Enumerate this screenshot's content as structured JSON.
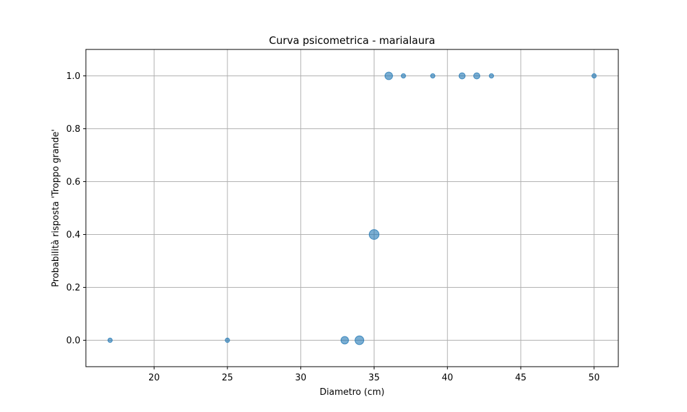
{
  "chart_data": {
    "type": "scatter",
    "title": "Curva psicometrica - marialaura",
    "xlabel": "Diametro (cm)",
    "ylabel": "Probabilità risposta 'Troppo grande'",
    "xlim": [
      15.35,
      51.65
    ],
    "ylim": [
      -0.1,
      1.1
    ],
    "xticks": [
      20,
      25,
      30,
      35,
      40,
      45,
      50
    ],
    "xtick_labels": [
      "20",
      "25",
      "30",
      "35",
      "40",
      "45",
      "50"
    ],
    "yticks": [
      0.0,
      0.2,
      0.4,
      0.6,
      0.8,
      1.0
    ],
    "ytick_labels": [
      "0.0",
      "0.2",
      "0.4",
      "0.6",
      "0.8",
      "1.0"
    ],
    "grid": true,
    "marker_color": "#1f77b4",
    "marker_alpha": 0.6,
    "grid_color": "#b0b0b0",
    "points": [
      {
        "x": 17,
        "y": 0.0,
        "trials": 1
      },
      {
        "x": 25,
        "y": 0.0,
        "trials": 1
      },
      {
        "x": 33,
        "y": 0.0,
        "trials": 3
      },
      {
        "x": 34,
        "y": 0.0,
        "trials": 4
      },
      {
        "x": 35,
        "y": 0.4,
        "trials": 5
      },
      {
        "x": 36,
        "y": 1.0,
        "trials": 3
      },
      {
        "x": 37,
        "y": 1.0,
        "trials": 1
      },
      {
        "x": 39,
        "y": 1.0,
        "trials": 1
      },
      {
        "x": 41,
        "y": 1.0,
        "trials": 2
      },
      {
        "x": 42,
        "y": 1.0,
        "trials": 2
      },
      {
        "x": 43,
        "y": 1.0,
        "trials": 1
      },
      {
        "x": 50,
        "y": 1.0,
        "trials": 1
      }
    ]
  }
}
